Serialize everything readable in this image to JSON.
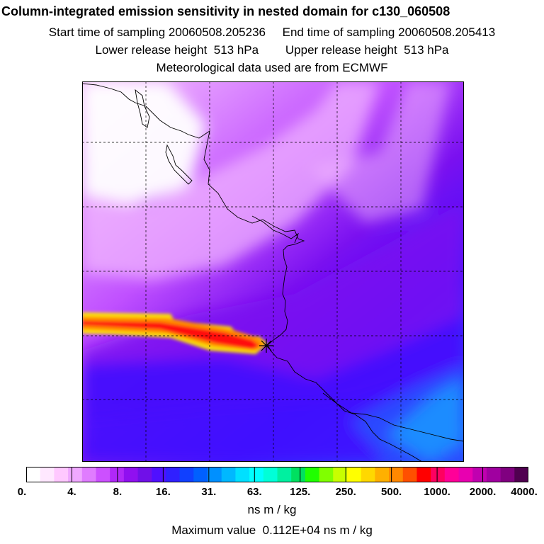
{
  "header": {
    "title": "Column-integrated emission sensitivity in nested domain for c130_060508",
    "start_label": "Start time of sampling 20060508.205236",
    "end_label": "End time of sampling 20060508.205413",
    "lower_label": "Lower release height  513 hPa",
    "upper_label": "Upper release height  513 hPa",
    "met_label": "Meteorological data used are from ECMWF"
  },
  "colorbar": {
    "colors": [
      "#ffffff",
      "#ffe8ff",
      "#ffc8ff",
      "#f0a8ff",
      "#e07cff",
      "#cc50ff",
      "#b028f8",
      "#9010f0",
      "#7010e8",
      "#5010ff",
      "#3020ff",
      "#1040ff",
      "#0060ff",
      "#0090ff",
      "#00b8ff",
      "#00e0ff",
      "#00ffff",
      "#00ffd8",
      "#00f0a0",
      "#00e060",
      "#20ff00",
      "#80ff00",
      "#c8ff00",
      "#ffff00",
      "#ffd800",
      "#ffb000",
      "#ff8800",
      "#ff5000",
      "#ff0000",
      "#ff0060",
      "#ff0098",
      "#e800b0",
      "#c000b0",
      "#a000a0",
      "#800080",
      "#500050"
    ],
    "tick_labels": [
      "0.",
      "4.",
      "8.",
      "16.",
      "31.",
      "63.",
      "125.",
      "250.",
      "500.",
      "1000.",
      "2000.",
      "4000."
    ],
    "unit": "ns m / kg"
  },
  "footer": {
    "max_value": "Maximum value  0.112E+04 ns m / kg"
  },
  "map": {
    "colors": {
      "light": "#f2b8ff",
      "medium": "#c050ff",
      "dark": "#7a10f0",
      "deep_blue": "#4010ff",
      "ocean_blue": "#2850ff",
      "light_blue": "#1e90ff",
      "plume_red": "#ff1010",
      "plume_orange": "#ff8c00",
      "plume_yellow": "#ffe800"
    },
    "grid": "dashed",
    "marker": "release-point-star"
  }
}
